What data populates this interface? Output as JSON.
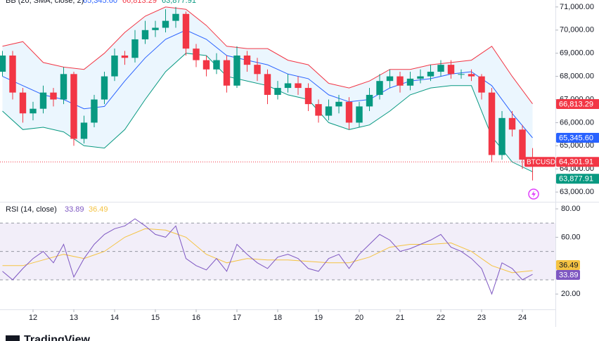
{
  "chart_data": {
    "type": "candlestick",
    "xlim": [
      11.19,
      24.81
    ],
    "xticks": [
      12,
      13,
      14,
      15,
      16,
      17,
      18,
      19,
      20,
      21,
      22,
      23,
      24
    ],
    "ylim": [
      62640,
      71300
    ],
    "yticks": [
      {
        "value": 63000,
        "label": "63,000.00"
      },
      {
        "value": 64000,
        "label": "64,000.00"
      },
      {
        "value": 65000,
        "label": "65,000.00"
      },
      {
        "value": 66000,
        "label": "66,000.00"
      },
      {
        "value": 67000,
        "label": "67,000.00"
      },
      {
        "value": 68000,
        "label": "68,000.00"
      },
      {
        "value": 69000,
        "label": "69,000.00"
      },
      {
        "value": 70000,
        "label": "70,000.00"
      },
      {
        "value": 71000,
        "label": "71,000.00"
      }
    ],
    "candles": {
      "name": "BTCUSD",
      "up_color": "#089981",
      "down_color": "#f23645",
      "last_value_label": "64,301.91",
      "x": [
        11.25,
        11.5,
        11.75,
        12,
        12.25,
        12.5,
        12.75,
        13,
        13.25,
        13.5,
        13.75,
        14,
        14.25,
        14.5,
        14.75,
        15,
        15.25,
        15.5,
        15.75,
        16,
        16.25,
        16.5,
        16.75,
        17,
        17.25,
        17.5,
        17.75,
        18,
        18.25,
        18.5,
        18.75,
        19,
        19.25,
        19.5,
        19.75,
        20,
        20.25,
        20.5,
        20.75,
        21,
        21.25,
        21.5,
        21.75,
        22,
        22.25,
        22.5,
        22.75,
        23,
        23.25,
        23.5,
        23.75,
        24,
        24.25
      ],
      "open": [
        68200,
        68900,
        67300,
        66400,
        66600,
        67300,
        67000,
        68100,
        65300,
        66000,
        67000,
        68000,
        68900,
        68800,
        69600,
        70000,
        70100,
        70400,
        70700,
        69200,
        68700,
        68300,
        68700,
        67600,
        68900,
        68500,
        68100,
        67200,
        67500,
        67700,
        67500,
        66800,
        66300,
        66700,
        66900,
        66000,
        66700,
        67200,
        67800,
        68000,
        67600,
        67900,
        68000,
        68200,
        68500,
        68100,
        68100,
        68000,
        67300,
        64600,
        66200,
        65700,
        64400
      ],
      "high": [
        69100,
        69100,
        67500,
        66900,
        67600,
        67500,
        68400,
        68200,
        66300,
        67200,
        68200,
        69200,
        69100,
        70000,
        70400,
        70400,
        70900,
        71000,
        70800,
        69400,
        68900,
        69000,
        68900,
        69300,
        69100,
        68800,
        68300,
        67800,
        68100,
        68000,
        67700,
        67000,
        67000,
        67200,
        67100,
        66900,
        67500,
        68100,
        68300,
        68200,
        68200,
        68300,
        68500,
        68700,
        68700,
        68300,
        68300,
        68100,
        67500,
        66500,
        66500,
        65900,
        64900
      ],
      "low": [
        68000,
        67000,
        66000,
        66100,
        66400,
        66700,
        66800,
        65000,
        65100,
        65800,
        66800,
        67800,
        68500,
        68600,
        69400,
        69700,
        69900,
        70100,
        68900,
        68400,
        68000,
        68100,
        67300,
        67500,
        68200,
        67800,
        66800,
        67000,
        67300,
        67200,
        66500,
        66000,
        66100,
        66400,
        65700,
        65800,
        66500,
        67000,
        67500,
        67300,
        67400,
        67700,
        67800,
        68000,
        67900,
        67900,
        67800,
        67000,
        64300,
        64400,
        65400,
        64000,
        63500
      ],
      "close": [
        68900,
        67300,
        66400,
        66600,
        67300,
        67000,
        68100,
        65300,
        66000,
        67000,
        68000,
        68900,
        68800,
        69600,
        70000,
        70100,
        70400,
        70700,
        69200,
        68700,
        68300,
        68700,
        67600,
        68900,
        68500,
        68100,
        67200,
        67500,
        67700,
        67500,
        66800,
        66300,
        66700,
        66900,
        66000,
        66700,
        67200,
        67800,
        68000,
        67600,
        67900,
        68000,
        68200,
        68500,
        68100,
        68100,
        68000,
        67300,
        64600,
        66200,
        65700,
        64400,
        64301.91
      ]
    },
    "bollinger": {
      "name": "BB (20, SMA, close, 2)",
      "fill": "rgba(33,150,243,0.09)",
      "x": [
        11.25,
        11.75,
        12.25,
        12.75,
        13.25,
        13.75,
        14.25,
        14.75,
        15.25,
        15.75,
        16.25,
        16.75,
        17.25,
        17.75,
        18.25,
        18.75,
        19.25,
        19.75,
        20.25,
        20.75,
        21.25,
        21.75,
        22.25,
        22.75,
        23.25,
        23.75,
        24.25
      ],
      "series": [
        {
          "color": "#f23645",
          "last_value_label": "66,813.29",
          "values": [
            69300,
            69500,
            68600,
            68400,
            68300,
            69000,
            69900,
            70600,
            71000,
            70900,
            70200,
            69300,
            69200,
            69200,
            68700,
            68500,
            67700,
            67500,
            67800,
            68300,
            68300,
            68500,
            68600,
            68700,
            69300,
            68000,
            66813.29
          ]
        },
        {
          "color": "#2962ff",
          "last_value_label": "65,345.60",
          "values": [
            68000,
            67600,
            67200,
            67000,
            66600,
            66700,
            67800,
            68800,
            69600,
            70000,
            69600,
            68900,
            68700,
            68500,
            68100,
            67900,
            67200,
            66900,
            67000,
            67500,
            67800,
            67900,
            68100,
            68200,
            67600,
            66400,
            65345.6
          ]
        },
        {
          "color": "#089981",
          "last_value_label": "63,877.91",
          "values": [
            66500,
            65700,
            65800,
            65600,
            65000,
            64900,
            65700,
            67000,
            68200,
            69000,
            68900,
            68000,
            67800,
            67600,
            67200,
            67000,
            66000,
            65700,
            65900,
            66500,
            67200,
            67500,
            67600,
            67600,
            65400,
            64300,
            63877.91
          ]
        }
      ]
    },
    "rsi": {
      "title": "RSI (14, close)",
      "ylim": [
        9.2,
        83.5
      ],
      "levels": [
        70,
        50,
        30
      ],
      "band_fill": "rgba(126,87,194,0.1)",
      "yticks": [
        {
          "value": 20,
          "label": "20.00"
        },
        {
          "value": 60,
          "label": "60.00"
        },
        {
          "value": 80,
          "label": "80.00"
        }
      ],
      "series": [
        {
          "color": "#7e57c2",
          "last_value_label": "33.89",
          "x": [
            11.25,
            11.5,
            11.75,
            12,
            12.25,
            12.5,
            12.75,
            13,
            13.25,
            13.5,
            13.75,
            14,
            14.25,
            14.5,
            14.75,
            15,
            15.25,
            15.5,
            15.75,
            16,
            16.25,
            16.5,
            16.75,
            17,
            17.25,
            17.5,
            17.75,
            18,
            18.25,
            18.5,
            18.75,
            19,
            19.25,
            19.5,
            19.75,
            20,
            20.25,
            20.5,
            20.75,
            21,
            21.25,
            21.5,
            21.75,
            22,
            22.25,
            22.5,
            22.75,
            23,
            23.25,
            23.5,
            23.75,
            24,
            24.25
          ],
          "values": [
            36,
            30,
            38,
            45,
            50,
            42,
            55,
            32,
            45,
            55,
            62,
            66,
            68,
            73,
            68,
            62,
            60,
            68,
            45,
            40,
            37,
            45,
            36,
            55,
            48,
            42,
            38,
            46,
            48,
            45,
            38,
            36,
            45,
            48,
            38,
            48,
            55,
            62,
            58,
            50,
            52,
            55,
            58,
            62,
            53,
            50,
            45,
            38,
            20,
            42,
            38,
            30,
            33.89
          ]
        },
        {
          "color": "#f5c342",
          "last_value_label": "36.49",
          "x": [
            11.25,
            11.75,
            12.25,
            12.75,
            13.25,
            13.75,
            14.25,
            14.75,
            15.25,
            15.75,
            16.25,
            16.75,
            17.25,
            17.75,
            18.25,
            18.75,
            19.25,
            19.75,
            20.25,
            20.75,
            21.25,
            21.75,
            22.25,
            22.75,
            23.25,
            23.75,
            24.25
          ],
          "values": [
            40,
            40,
            44,
            48,
            45,
            50,
            60,
            66,
            65,
            60,
            48,
            42,
            45,
            44,
            44,
            43,
            42,
            42,
            46,
            53,
            55,
            55,
            56,
            50,
            40,
            35,
            36.49
          ]
        }
      ]
    },
    "brand": "TradingView"
  }
}
